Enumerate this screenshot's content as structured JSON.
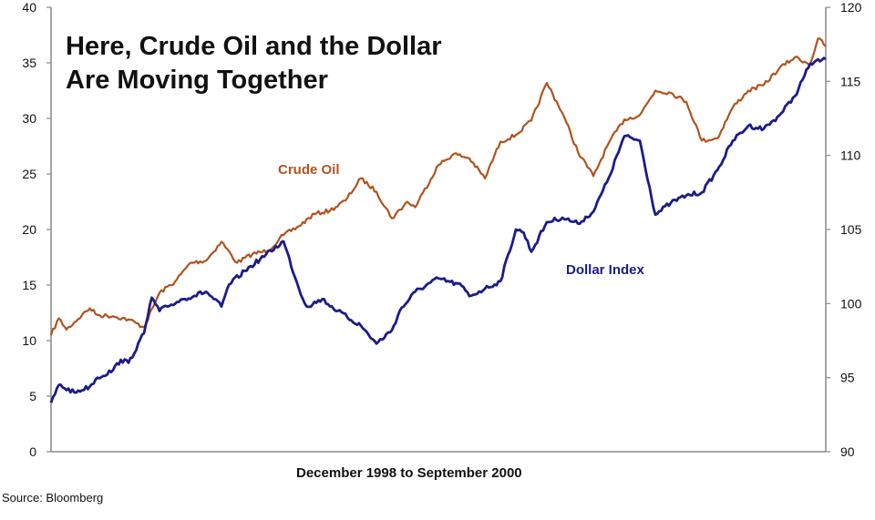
{
  "chart_data": {
    "type": "line",
    "title_line1": "Here, Crude Oil and the Dollar",
    "title_line2": "Are Moving Together",
    "xlabel": "December 1998 to September 2000",
    "source": "Source: Bloomberg",
    "grid": false,
    "left_axis": {
      "ylim": [
        0,
        40
      ],
      "ticks": [
        "0",
        "5",
        "10",
        "15",
        "20",
        "25",
        "30",
        "35",
        "40"
      ]
    },
    "right_axis": {
      "ylim": [
        90,
        120
      ],
      "ticks": [
        "90",
        "95",
        "100",
        "105",
        "110",
        "115",
        "120"
      ]
    },
    "series": [
      {
        "name": "Crude Oil",
        "label": "Crude Oil",
        "axis": "left",
        "color": "#b0531e",
        "x": [
          0,
          0.01,
          0.02,
          0.04,
          0.05,
          0.06,
          0.08,
          0.1,
          0.12,
          0.14,
          0.16,
          0.18,
          0.2,
          0.22,
          0.24,
          0.26,
          0.28,
          0.3,
          0.32,
          0.34,
          0.36,
          0.38,
          0.4,
          0.42,
          0.44,
          0.46,
          0.47,
          0.48,
          0.5,
          0.52,
          0.54,
          0.56,
          0.58,
          0.6,
          0.62,
          0.64,
          0.66,
          0.68,
          0.7,
          0.72,
          0.74,
          0.76,
          0.78,
          0.8,
          0.82,
          0.84,
          0.86,
          0.88,
          0.9,
          0.92,
          0.94,
          0.96,
          0.98,
          0.99,
          1.0
        ],
        "values": [
          10.5,
          12.0,
          11.0,
          12.3,
          12.9,
          12.3,
          12.2,
          11.9,
          11.2,
          14.3,
          15.3,
          17.0,
          17.2,
          18.9,
          17.0,
          17.8,
          18.1,
          19.5,
          20.3,
          21.4,
          21.7,
          22.6,
          24.6,
          23.4,
          21.0,
          22.5,
          22.0,
          23.3,
          25.8,
          26.8,
          26.4,
          24.6,
          27.9,
          28.5,
          29.8,
          33.2,
          30.5,
          27.0,
          24.8,
          27.8,
          29.9,
          30.3,
          32.5,
          32.3,
          31.5,
          28.0,
          28.2,
          31.0,
          32.5,
          33.0,
          34.5,
          35.5,
          34.9,
          37.2,
          36.5
        ]
      },
      {
        "name": "Dollar Index",
        "label": "Dollar Index",
        "axis": "right",
        "color": "#1c1c8a",
        "x": [
          0,
          0.01,
          0.03,
          0.05,
          0.06,
          0.08,
          0.09,
          0.1,
          0.12,
          0.13,
          0.14,
          0.15,
          0.17,
          0.2,
          0.22,
          0.23,
          0.25,
          0.27,
          0.3,
          0.32,
          0.33,
          0.35,
          0.37,
          0.4,
          0.42,
          0.44,
          0.45,
          0.47,
          0.5,
          0.53,
          0.54,
          0.56,
          0.58,
          0.6,
          0.61,
          0.62,
          0.64,
          0.66,
          0.68,
          0.7,
          0.72,
          0.74,
          0.76,
          0.78,
          0.8,
          0.82,
          0.84,
          0.86,
          0.88,
          0.9,
          0.92,
          0.94,
          0.96,
          0.98,
          1.0
        ],
        "values": [
          93.3,
          94.5,
          94.0,
          94.4,
          95.0,
          95.5,
          96.2,
          96.0,
          98.0,
          100.4,
          99.5,
          99.8,
          100.3,
          100.8,
          99.8,
          101.3,
          102.2,
          103.0,
          104.2,
          101.0,
          99.8,
          100.3,
          99.5,
          98.5,
          97.3,
          98.2,
          99.5,
          100.8,
          101.7,
          101.2,
          100.5,
          101.0,
          101.5,
          105.0,
          104.8,
          103.5,
          105.5,
          105.8,
          105.4,
          106.2,
          108.5,
          111.3,
          111.0,
          106.0,
          106.8,
          107.3,
          107.5,
          109.0,
          111.0,
          112.0,
          111.8,
          112.7,
          114.0,
          116.2,
          116.5
        ]
      }
    ]
  }
}
